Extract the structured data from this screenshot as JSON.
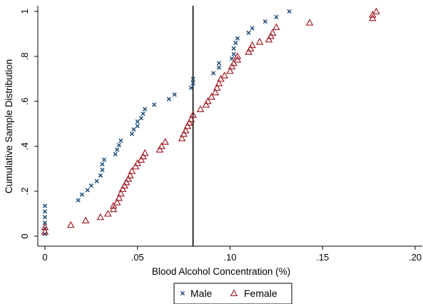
{
  "chart_data": {
    "type": "scatter",
    "title": "",
    "xlabel": "Blood Alcohol Concentration (%)",
    "ylabel": "Cumulative Sample Distribution",
    "xlim": [
      0,
      0.2
    ],
    "ylim": [
      0,
      1
    ],
    "x_ticks": [
      0,
      0.05,
      0.1,
      0.15,
      0.2
    ],
    "x_tick_labels": [
      "0",
      ".05",
      ".10",
      ".15",
      ".20"
    ],
    "y_ticks": [
      0,
      0.2,
      0.4,
      0.6,
      0.8,
      1
    ],
    "y_tick_labels": [
      "0",
      ".2",
      ".4",
      ".6",
      ".8",
      "1"
    ],
    "grid": false,
    "reference_line_x": 0.08,
    "legend": {
      "placement": "bottom-center"
    },
    "series": [
      {
        "name": "Male",
        "marker": "x",
        "color": "#1f4e79",
        "points": [
          [
            0,
            0.01
          ],
          [
            0,
            0.035
          ],
          [
            0,
            0.06
          ],
          [
            0,
            0.085
          ],
          [
            0,
            0.11
          ],
          [
            0,
            0.135
          ],
          [
            0.018,
            0.16
          ],
          [
            0.02,
            0.185
          ],
          [
            0.023,
            0.205
          ],
          [
            0.025,
            0.225
          ],
          [
            0.028,
            0.245
          ],
          [
            0.03,
            0.27
          ],
          [
            0.031,
            0.295
          ],
          [
            0.031,
            0.32
          ],
          [
            0.032,
            0.34
          ],
          [
            0.038,
            0.365
          ],
          [
            0.039,
            0.385
          ],
          [
            0.04,
            0.405
          ],
          [
            0.041,
            0.425
          ],
          [
            0.047,
            0.455
          ],
          [
            0.048,
            0.475
          ],
          [
            0.05,
            0.49
          ],
          [
            0.05,
            0.51
          ],
          [
            0.052,
            0.525
          ],
          [
            0.053,
            0.545
          ],
          [
            0.054,
            0.565
          ],
          [
            0.059,
            0.585
          ],
          [
            0.067,
            0.61
          ],
          [
            0.07,
            0.63
          ],
          [
            0.079,
            0.66
          ],
          [
            0.08,
            0.68
          ],
          [
            0.08,
            0.7
          ],
          [
            0.091,
            0.725
          ],
          [
            0.094,
            0.75
          ],
          [
            0.094,
            0.77
          ],
          [
            0.101,
            0.79
          ],
          [
            0.102,
            0.81
          ],
          [
            0.102,
            0.835
          ],
          [
            0.103,
            0.86
          ],
          [
            0.104,
            0.88
          ],
          [
            0.11,
            0.905
          ],
          [
            0.112,
            0.925
          ],
          [
            0.119,
            0.955
          ],
          [
            0.125,
            0.975
          ],
          [
            0.132,
            1.0
          ]
        ]
      },
      {
        "name": "Female",
        "marker": "triangle",
        "color": "#a3212a",
        "points": [
          [
            0,
            0.02
          ],
          [
            0,
            0.04
          ],
          [
            0.014,
            0.05
          ],
          [
            0.022,
            0.07
          ],
          [
            0.03,
            0.085
          ],
          [
            0.034,
            0.1
          ],
          [
            0.037,
            0.12
          ],
          [
            0.037,
            0.135
          ],
          [
            0.039,
            0.15
          ],
          [
            0.04,
            0.17
          ],
          [
            0.041,
            0.19
          ],
          [
            0.042,
            0.21
          ],
          [
            0.043,
            0.225
          ],
          [
            0.044,
            0.24
          ],
          [
            0.045,
            0.255
          ],
          [
            0.046,
            0.27
          ],
          [
            0.047,
            0.29
          ],
          [
            0.049,
            0.31
          ],
          [
            0.05,
            0.325
          ],
          [
            0.052,
            0.34
          ],
          [
            0.053,
            0.355
          ],
          [
            0.054,
            0.37
          ],
          [
            0.062,
            0.385
          ],
          [
            0.063,
            0.4
          ],
          [
            0.065,
            0.42
          ],
          [
            0.074,
            0.435
          ],
          [
            0.075,
            0.455
          ],
          [
            0.076,
            0.47
          ],
          [
            0.077,
            0.49
          ],
          [
            0.078,
            0.505
          ],
          [
            0.079,
            0.52
          ],
          [
            0.08,
            0.54
          ],
          [
            0.084,
            0.565
          ],
          [
            0.087,
            0.585
          ],
          [
            0.088,
            0.6
          ],
          [
            0.09,
            0.62
          ],
          [
            0.092,
            0.64
          ],
          [
            0.093,
            0.66
          ],
          [
            0.094,
            0.68
          ],
          [
            0.095,
            0.7
          ],
          [
            0.097,
            0.715
          ],
          [
            0.1,
            0.735
          ],
          [
            0.101,
            0.755
          ],
          [
            0.102,
            0.77
          ],
          [
            0.104,
            0.785
          ],
          [
            0.104,
            0.8
          ],
          [
            0.11,
            0.82
          ],
          [
            0.111,
            0.835
          ],
          [
            0.112,
            0.85
          ],
          [
            0.116,
            0.865
          ],
          [
            0.121,
            0.875
          ],
          [
            0.122,
            0.89
          ],
          [
            0.123,
            0.905
          ],
          [
            0.125,
            0.93
          ],
          [
            0.143,
            0.95
          ],
          [
            0.177,
            0.97
          ],
          [
            0.177,
            0.985
          ],
          [
            0.179,
            1.0
          ]
        ]
      }
    ]
  }
}
